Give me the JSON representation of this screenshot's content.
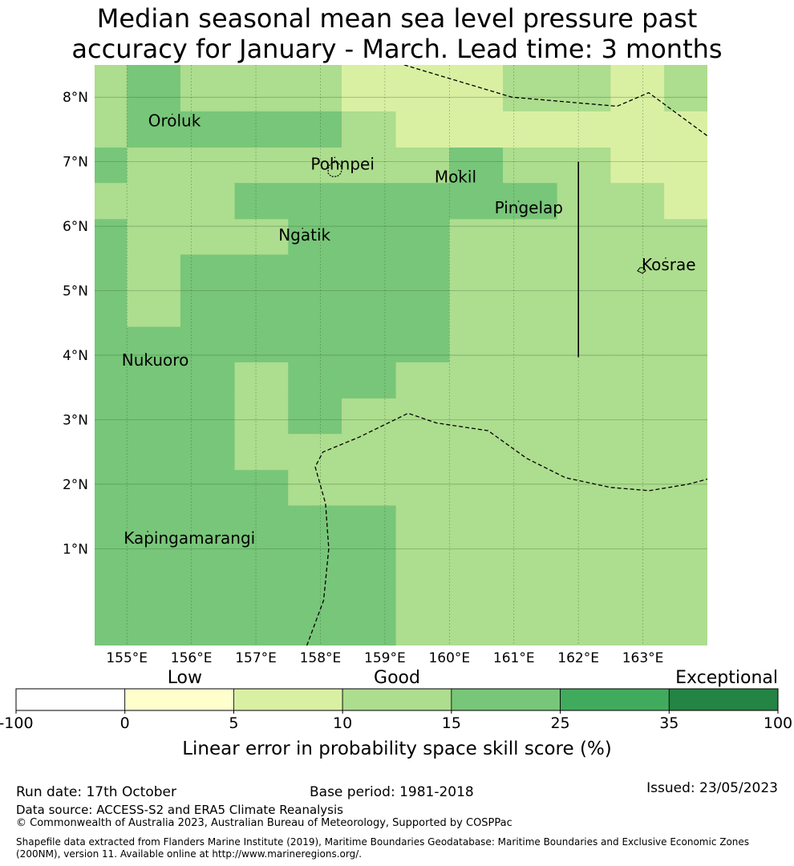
{
  "title": {
    "line1": "Median seasonal mean sea level pressure past",
    "line2": "accuracy for January - March. Lead time: 3 months"
  },
  "map": {
    "lon_range": [
      154.5,
      164.0
    ],
    "lat_range": [
      -0.5,
      8.5
    ],
    "x_ticks": [
      "155°E",
      "156°E",
      "157°E",
      "158°E",
      "159°E",
      "160°E",
      "161°E",
      "162°E",
      "163°E"
    ],
    "x_tick_values": [
      155,
      156,
      157,
      158,
      159,
      160,
      161,
      162,
      163
    ],
    "y_ticks": [
      "8°N",
      "7°N",
      "6°N",
      "5°N",
      "4°N",
      "3°N",
      "2°N",
      "1°N"
    ],
    "y_tick_values": [
      8,
      7,
      6,
      5,
      4,
      3,
      2,
      1
    ],
    "grid": true,
    "cell_lon_edges": [
      154.5,
      155.0,
      155.83,
      156.67,
      157.5,
      158.33,
      159.17,
      160.0,
      160.83,
      161.67,
      162.5,
      163.33,
      164.0
    ],
    "cell_lat_edges": [
      8.5,
      8.33,
      7.78,
      7.22,
      6.67,
      6.11,
      5.56,
      5.0,
      4.44,
      3.89,
      3.33,
      2.78,
      2.22,
      1.67,
      -0.5
    ],
    "score_grid": [
      [
        3,
        4,
        3,
        3,
        3,
        2,
        2,
        2,
        3,
        3,
        2,
        3
      ],
      [
        3,
        4,
        3,
        3,
        3,
        2,
        2,
        2,
        3,
        3,
        2,
        3
      ],
      [
        3,
        4,
        4,
        4,
        4,
        3,
        2,
        2,
        2,
        2,
        2,
        2
      ],
      [
        4,
        3,
        3,
        3,
        3,
        3,
        3,
        4,
        3,
        3,
        2,
        2
      ],
      [
        3,
        3,
        3,
        4,
        4,
        4,
        4,
        4,
        4,
        3,
        3,
        2
      ],
      [
        4,
        3,
        3,
        3,
        4,
        4,
        4,
        3,
        3,
        3,
        3,
        3
      ],
      [
        4,
        3,
        4,
        4,
        4,
        4,
        4,
        3,
        3,
        3,
        3,
        3
      ],
      [
        4,
        3,
        4,
        4,
        4,
        4,
        4,
        3,
        3,
        3,
        3,
        3
      ],
      [
        4,
        4,
        4,
        4,
        4,
        4,
        4,
        3,
        3,
        3,
        3,
        3
      ],
      [
        4,
        4,
        4,
        3,
        4,
        4,
        3,
        3,
        3,
        3,
        3,
        3
      ],
      [
        4,
        4,
        4,
        3,
        4,
        3,
        3,
        3,
        3,
        3,
        3,
        3
      ],
      [
        4,
        4,
        4,
        3,
        3,
        3,
        3,
        3,
        3,
        3,
        3,
        3
      ],
      [
        4,
        4,
        4,
        4,
        3,
        3,
        3,
        3,
        3,
        3,
        3,
        3
      ],
      [
        4,
        4,
        4,
        4,
        4,
        4,
        3,
        3,
        3,
        3,
        3,
        3
      ]
    ],
    "places": [
      {
        "name": "Oroluk",
        "lon": 155.33,
        "lat": 7.55
      },
      {
        "name": "Pohnpei",
        "lon": 157.85,
        "lat": 6.88
      },
      {
        "name": "Mokil",
        "lon": 159.77,
        "lat": 6.68
      },
      {
        "name": "Pingelap",
        "lon": 160.7,
        "lat": 6.2
      },
      {
        "name": "Ngatik",
        "lon": 157.35,
        "lat": 5.78
      },
      {
        "name": "Kosrae",
        "lon": 162.98,
        "lat": 5.32
      },
      {
        "name": "Nukuoro",
        "lon": 154.92,
        "lat": 3.84
      },
      {
        "name": "Kapingamarangi",
        "lon": 154.95,
        "lat": 1.08
      }
    ],
    "eez_boundaries_dashed": [
      [
        [
          159.3,
          8.5
        ],
        [
          160.97,
          8.0
        ],
        [
          162.6,
          7.86
        ],
        [
          163.09,
          8.07
        ],
        [
          164.0,
          7.4
        ]
      ],
      [
        [
          157.79,
          -0.5
        ],
        [
          158.05,
          0.2
        ],
        [
          158.13,
          1.0
        ],
        [
          158.08,
          1.7
        ],
        [
          157.92,
          2.27
        ],
        [
          158.04,
          2.5
        ],
        [
          158.6,
          2.73
        ],
        [
          159.36,
          3.1
        ],
        [
          159.8,
          2.95
        ],
        [
          160.6,
          2.83
        ],
        [
          161.2,
          2.4
        ],
        [
          161.8,
          2.1
        ],
        [
          162.5,
          1.95
        ],
        [
          163.1,
          1.9
        ],
        [
          163.7,
          2.0
        ],
        [
          164.0,
          2.08
        ]
      ]
    ],
    "boundary_solid": [
      [
        [
          162.0,
          7.0
        ],
        [
          162.0,
          3.97
        ]
      ]
    ]
  },
  "colorbar": {
    "tick_labels": [
      "-100",
      "0",
      "5",
      "10",
      "15",
      "25",
      "35",
      "100"
    ],
    "colors": [
      "#ffffff",
      "#ffffcc",
      "#d9f0a3",
      "#addd8e",
      "#78c679",
      "#41ab5d",
      "#238443"
    ],
    "category_labels": [
      "Low",
      "Good",
      "Exceptional"
    ],
    "xlabel": "Linear error in probability space skill score (%)"
  },
  "footer": {
    "run_date": "Run date: 17th October",
    "base_period": "Base period: 1981-2018",
    "issued": "Issued: 23/05/2023",
    "data_source": "Data source: ACCESS-S2 and ERA5 Climate Reanalysis",
    "copyright": "© Commonwealth of Australia 2023, Australian Bureau of Meteorology, Supported by COSPPac",
    "shapefile": "Shapefile data extracted from Flanders Marine Institute (2019), Maritime Boundaries Geodatabase: Maritime Boundaries and Exclusive Economic Zones (200NM), version 11. Available online at http://www.marineregions.org/."
  }
}
